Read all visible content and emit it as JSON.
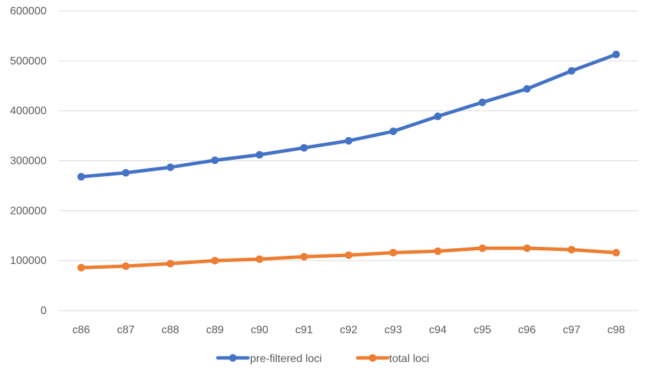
{
  "chart_data": {
    "type": "line",
    "categories": [
      "c86",
      "c87",
      "c88",
      "c89",
      "c90",
      "c91",
      "c92",
      "c93",
      "c94",
      "c95",
      "c96",
      "c97",
      "c98"
    ],
    "series": [
      {
        "name": "pre-filtered loci",
        "color": "#4472C4",
        "values": [
          268000,
          276000,
          287000,
          301000,
          312000,
          326000,
          340000,
          359000,
          389000,
          417000,
          444000,
          480000,
          513000
        ]
      },
      {
        "name": "total loci",
        "color": "#ED7D31",
        "values": [
          86000,
          89000,
          94000,
          100000,
          103000,
          108000,
          111000,
          116000,
          119000,
          125000,
          125000,
          122000,
          116000
        ]
      }
    ],
    "yticks": [
      "0",
      "100000",
      "200000",
      "300000",
      "400000",
      "500000",
      "600000"
    ],
    "ylim": [
      0,
      600000
    ],
    "grid": true,
    "legend_position": "bottom",
    "gridline_color": "#D9D9D9"
  }
}
